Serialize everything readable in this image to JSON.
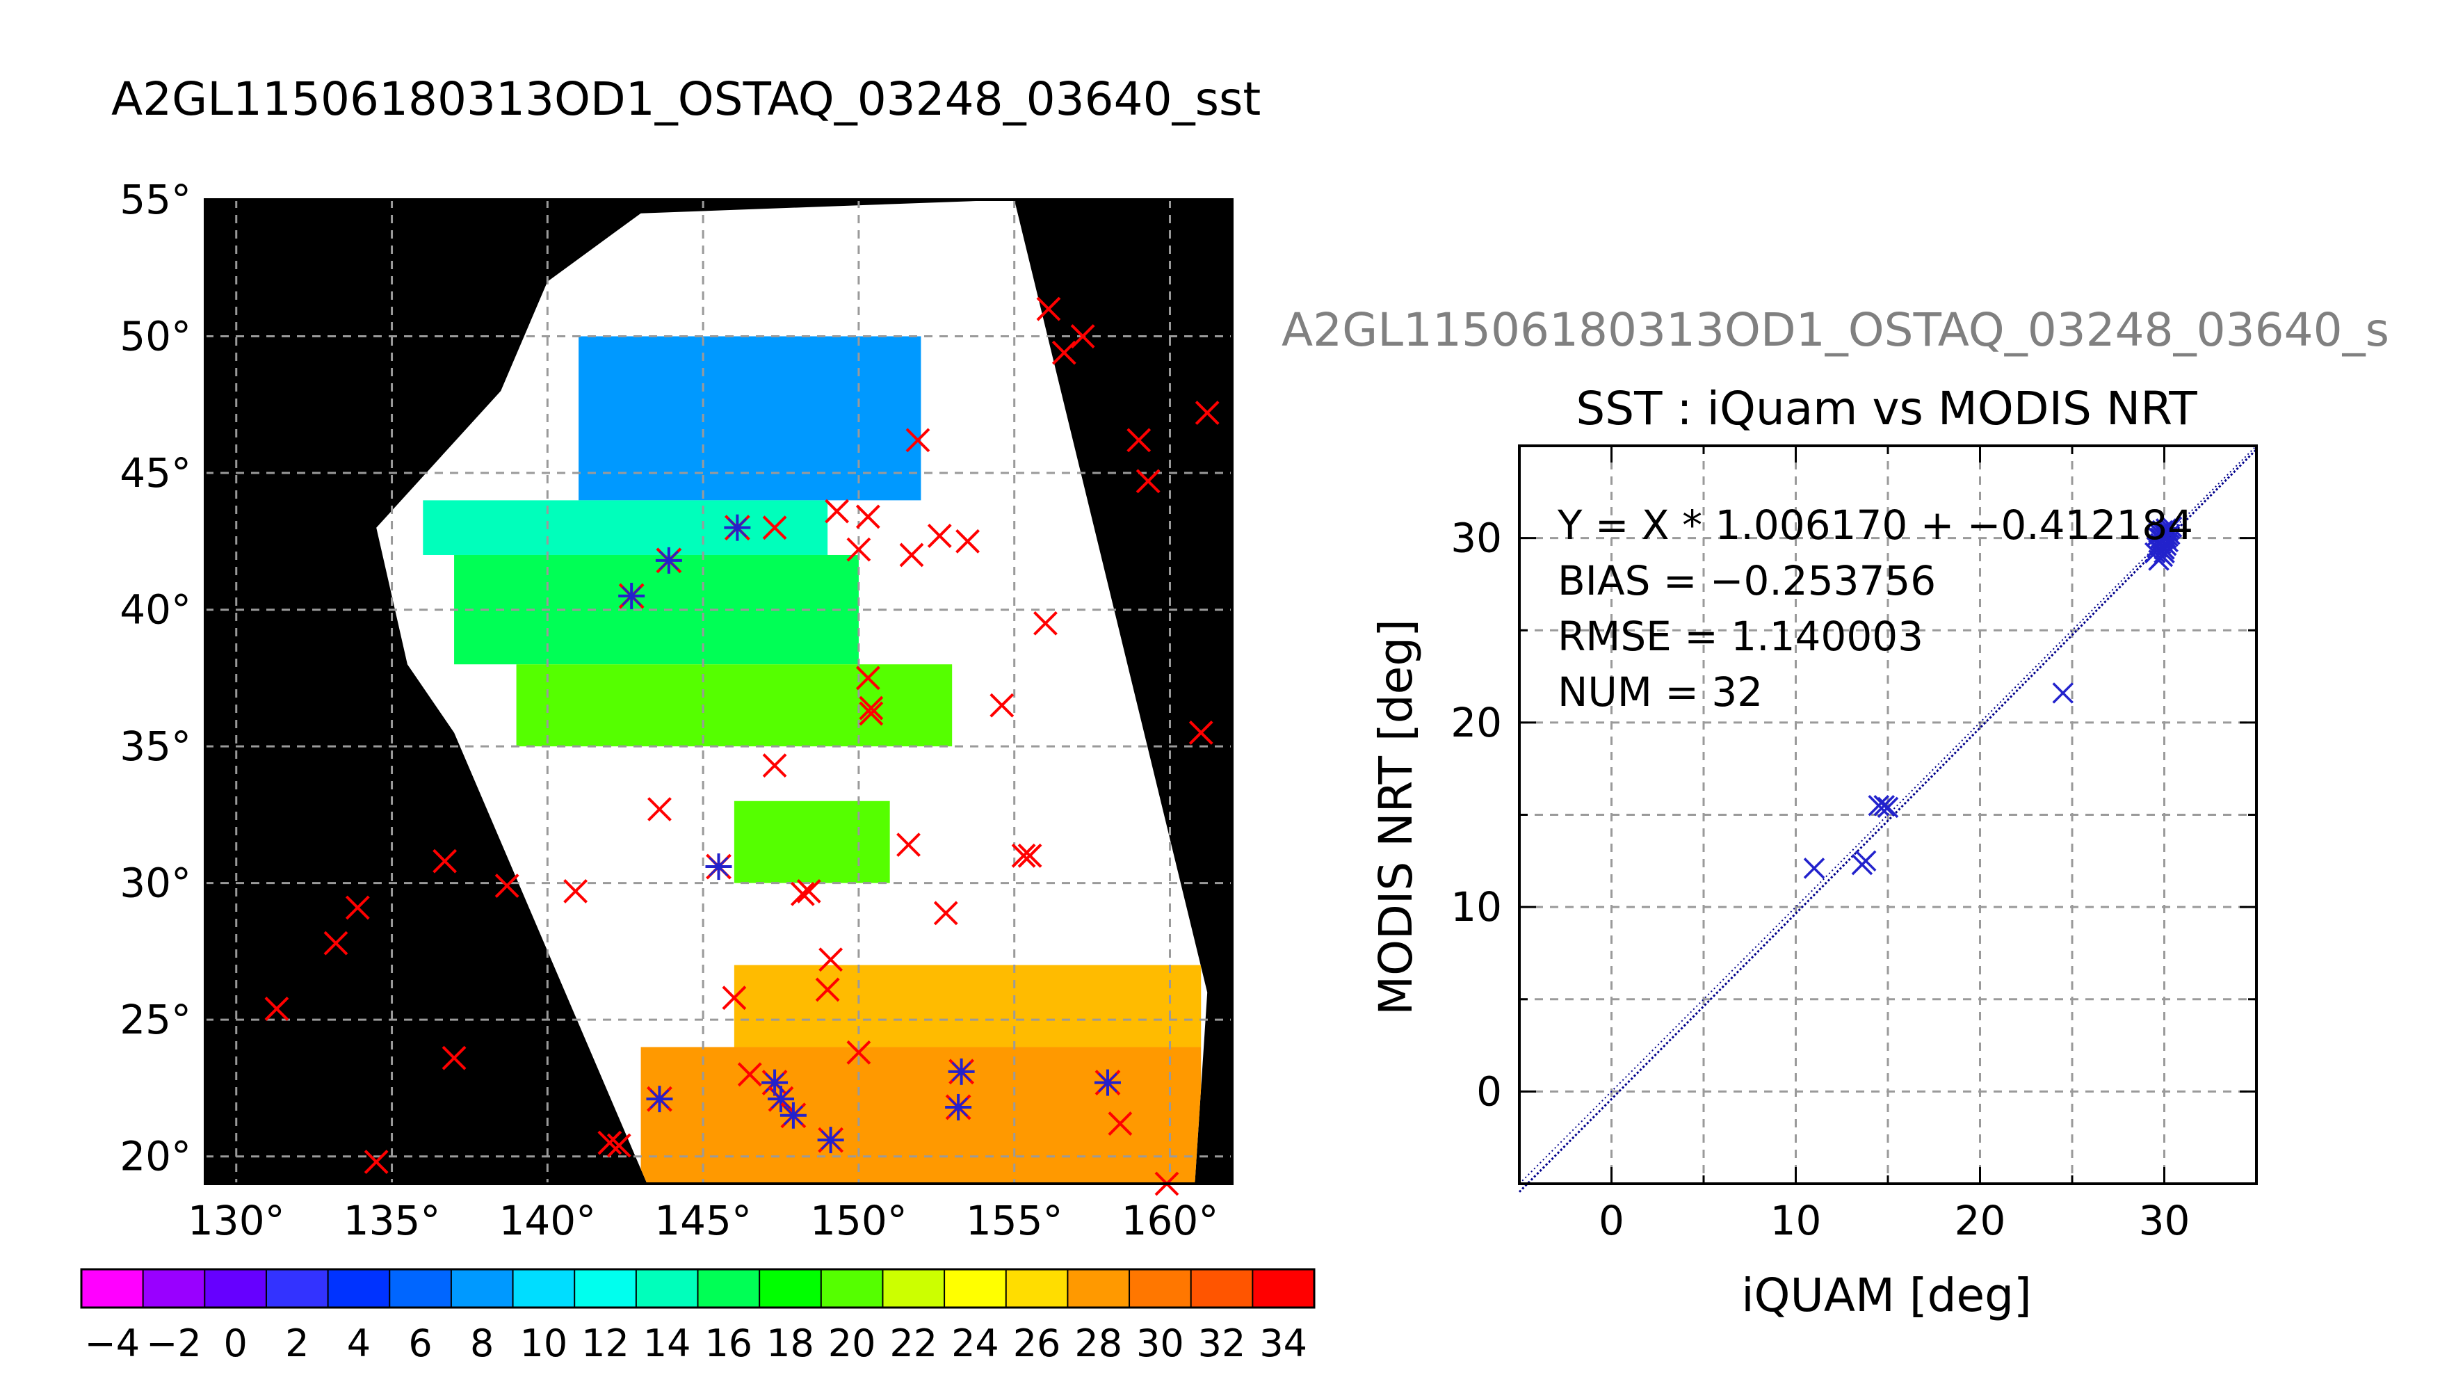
{
  "map_title": "A2GL11506180313OD1_OSTAQ_03248_03640_sst",
  "scatter_supertitle": "A2GL11506180313OD1_OSTAQ_03248_03640_s",
  "colors": {
    "map_background": "#000000",
    "no_data": "#ffffff",
    "buoy_marker": "#ff0000",
    "matchup_marker": "#2222cc",
    "fit_line": "#00008b",
    "supertitle": "#808080",
    "grid": "#9a9a9a"
  },
  "chart_data": [
    {
      "type": "map",
      "title": "A2GL11506180313OD1_OSTAQ_03248_03640_sst",
      "lon_range": [
        129,
        162
      ],
      "lat_range": [
        19,
        55
      ],
      "x_ticks": [
        130,
        135,
        140,
        145,
        150,
        155,
        160
      ],
      "y_ticks": [
        20,
        25,
        30,
        35,
        40,
        45,
        50,
        55
      ],
      "degree_symbol": "°",
      "grid": true,
      "swath_lonlat": [
        [
          143.0,
          54.5
        ],
        [
          155.0,
          55.0
        ],
        [
          161.2,
          26.0
        ],
        [
          160.8,
          19.0
        ],
        [
          143.2,
          19.0
        ],
        [
          137.0,
          35.5
        ],
        [
          135.5,
          38.0
        ],
        [
          134.5,
          43.0
        ],
        [
          138.5,
          48.0
        ],
        [
          140.0,
          52.0
        ]
      ],
      "sst_bands": [
        {
          "lat_min": 44,
          "lat_max": 50,
          "lon_min": 141,
          "lon_max": 152,
          "sst": 8
        },
        {
          "lat_min": 42,
          "lat_max": 44,
          "lon_min": 136,
          "lon_max": 149,
          "sst": 14
        },
        {
          "lat_min": 38,
          "lat_max": 42,
          "lon_min": 137,
          "lon_max": 150,
          "sst": 16
        },
        {
          "lat_min": 35,
          "lat_max": 38,
          "lon_min": 139,
          "lon_max": 153,
          "sst": 19
        },
        {
          "lat_min": 30,
          "lat_max": 33,
          "lon_min": 146,
          "lon_max": 151,
          "sst": 20
        },
        {
          "lat_min": 24,
          "lat_max": 27,
          "lon_min": 146,
          "lon_max": 161,
          "sst": 27
        },
        {
          "lat_min": 19,
          "lat_max": 24,
          "lon_min": 143,
          "lon_max": 161,
          "sst": 29
        }
      ],
      "buoys": [
        [
          131.3,
          25.4
        ],
        [
          133.2,
          27.8
        ],
        [
          133.9,
          29.1
        ],
        [
          134.5,
          19.8
        ],
        [
          136.7,
          30.8
        ],
        [
          137.0,
          23.6
        ],
        [
          138.7,
          29.9
        ],
        [
          140.9,
          29.7
        ],
        [
          142.0,
          20.5
        ],
        [
          142.3,
          20.4
        ],
        [
          143.6,
          32.7
        ],
        [
          146.0,
          25.8
        ],
        [
          146.5,
          23.0
        ],
        [
          147.3,
          34.3
        ],
        [
          147.3,
          43.0
        ],
        [
          148.2,
          29.6
        ],
        [
          148.4,
          29.7
        ],
        [
          149.0,
          26.1
        ],
        [
          149.1,
          27.2
        ],
        [
          149.3,
          43.6
        ],
        [
          150.0,
          23.8
        ],
        [
          150.0,
          42.2
        ],
        [
          150.3,
          43.4
        ],
        [
          150.3,
          37.5
        ],
        [
          150.4,
          36.2
        ],
        [
          150.4,
          36.4
        ],
        [
          151.6,
          31.4
        ],
        [
          151.7,
          42.0
        ],
        [
          151.9,
          46.2
        ],
        [
          152.6,
          42.7
        ],
        [
          152.8,
          28.9
        ],
        [
          153.5,
          42.5
        ],
        [
          154.6,
          36.5
        ],
        [
          155.3,
          31.0
        ],
        [
          155.5,
          31.0
        ],
        [
          156.0,
          39.5
        ],
        [
          156.1,
          51.0
        ],
        [
          156.6,
          49.4
        ],
        [
          157.2,
          50.0
        ],
        [
          158.4,
          21.2
        ],
        [
          159.0,
          46.2
        ],
        [
          159.3,
          44.7
        ],
        [
          159.9,
          19.0
        ],
        [
          161.0,
          35.5
        ],
        [
          161.2,
          47.2
        ]
      ],
      "matchups": [
        [
          142.7,
          40.5
        ],
        [
          143.9,
          41.8
        ],
        [
          143.6,
          22.1
        ],
        [
          145.5,
          30.6
        ],
        [
          146.1,
          43.0
        ],
        [
          147.3,
          22.7
        ],
        [
          147.5,
          22.1
        ],
        [
          147.9,
          21.5
        ],
        [
          149.1,
          20.6
        ],
        [
          153.3,
          23.1
        ],
        [
          153.2,
          21.8
        ],
        [
          158.0,
          22.7
        ]
      ]
    },
    {
      "type": "colorbar",
      "min": -5,
      "max": 35,
      "step": 2,
      "tick_labels": [
        "−4",
        "−2",
        "0",
        "2",
        "4",
        "6",
        "8",
        "10",
        "12",
        "14",
        "16",
        "18",
        "20",
        "22",
        "24",
        "26",
        "28",
        "30",
        "32",
        "34"
      ]
    },
    {
      "type": "scatter",
      "title": "SST : iQuam vs MODIS NRT",
      "xlabel": "iQUAM [deg]",
      "ylabel": "MODIS NRT [deg]",
      "xlim": [
        -5,
        35
      ],
      "ylim": [
        -5,
        35
      ],
      "x_ticks": [
        0,
        10,
        20,
        30
      ],
      "y_ticks": [
        0,
        10,
        20,
        30
      ],
      "grid": true,
      "stats": [
        "Y = X * 1.006170 + −0.412184",
        "BIAS = −0.253756",
        "RMSE = 1.140003",
        "NUM = 32"
      ],
      "fit": {
        "slope": 1.00617,
        "intercept": -0.412184
      },
      "points": [
        [
          11.0,
          12.1
        ],
        [
          13.6,
          12.3
        ],
        [
          13.8,
          12.5
        ],
        [
          14.5,
          15.5
        ],
        [
          14.8,
          15.5
        ],
        [
          15.0,
          15.4
        ],
        [
          24.5,
          21.6
        ],
        [
          29.5,
          29.2
        ],
        [
          29.6,
          29.5
        ],
        [
          29.7,
          28.8
        ],
        [
          29.8,
          30.2
        ],
        [
          29.9,
          29.0
        ],
        [
          30.0,
          30.0
        ],
        [
          30.0,
          30.3
        ],
        [
          30.1,
          30.5
        ],
        [
          30.2,
          30.4
        ],
        [
          30.3,
          30.2
        ],
        [
          30.4,
          30.6
        ],
        [
          29.6,
          30.1
        ],
        [
          29.8,
          29.7
        ],
        [
          30.0,
          29.4
        ],
        [
          30.2,
          29.8
        ],
        [
          30.1,
          30.0
        ],
        [
          29.9,
          30.4
        ],
        [
          30.3,
          30.5
        ],
        [
          29.7,
          30.3
        ],
        [
          30.0,
          29.2
        ],
        [
          30.2,
          30.1
        ],
        [
          29.8,
          30.0
        ],
        [
          30.1,
          29.6
        ],
        [
          29.9,
          29.9
        ],
        [
          30.0,
          30.2
        ]
      ]
    }
  ]
}
